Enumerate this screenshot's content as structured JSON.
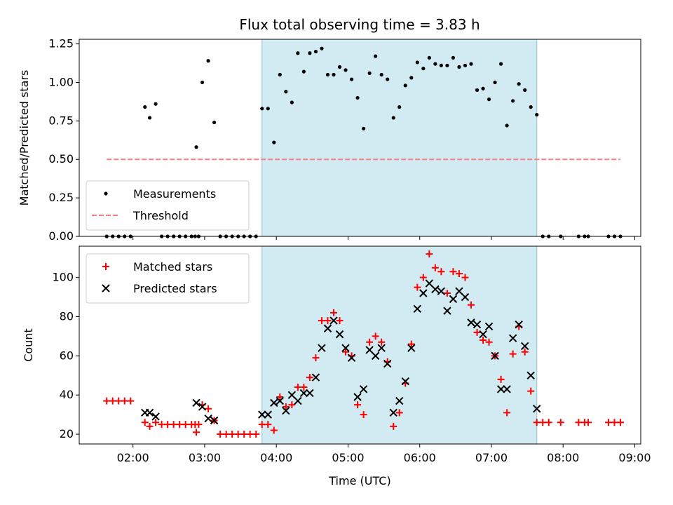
{
  "chart_data": [
    {
      "type": "scatter",
      "title": "Flux total observing time = 3.83 h",
      "xlabel": "",
      "ylabel": "Matched/Predicted stars",
      "ylim": [
        0,
        1.28
      ],
      "xlim": [
        "01:15",
        "09:05"
      ],
      "yticks": [
        0.0,
        0.25,
        0.5,
        0.75,
        1.0,
        1.25
      ],
      "ytick_labels": [
        "0.00",
        "0.25",
        "0.50",
        "0.75",
        "1.00",
        "1.25"
      ],
      "highlight_span": [
        "03:48",
        "07:38"
      ],
      "highlight_color": "#add8e6",
      "legend": {
        "location": "lower-left",
        "entries": [
          "Measurements",
          "Threshold"
        ]
      },
      "series": [
        {
          "name": "Measurements",
          "marker": "dot",
          "color": "#000000",
          "points": [
            [
              "01:38",
              0
            ],
            [
              "01:43",
              0
            ],
            [
              "01:48",
              0
            ],
            [
              "01:53",
              0
            ],
            [
              "01:58",
              0
            ],
            [
              "02:10",
              0.84
            ],
            [
              "02:14",
              0.77
            ],
            [
              "02:19",
              0.86
            ],
            [
              "02:24",
              0
            ],
            [
              "02:29",
              0
            ],
            [
              "02:34",
              0
            ],
            [
              "02:39",
              0
            ],
            [
              "02:44",
              0
            ],
            [
              "02:49",
              0
            ],
            [
              "02:52",
              0
            ],
            [
              "02:55",
              0
            ],
            [
              "02:53",
              0.58
            ],
            [
              "02:58",
              1.0
            ],
            [
              "03:03",
              1.14
            ],
            [
              "03:08",
              0.74
            ],
            [
              "03:13",
              0
            ],
            [
              "03:18",
              0
            ],
            [
              "03:23",
              0
            ],
            [
              "03:28",
              0
            ],
            [
              "03:33",
              0
            ],
            [
              "03:38",
              0
            ],
            [
              "03:43",
              0
            ],
            [
              "03:48",
              0.83
            ],
            [
              "03:53",
              0.83
            ],
            [
              "03:58",
              0.61
            ],
            [
              "04:03",
              1.05
            ],
            [
              "04:08",
              0.94
            ],
            [
              "04:13",
              0.87
            ],
            [
              "04:18",
              1.19
            ],
            [
              "04:23",
              1.07
            ],
            [
              "04:28",
              1.19
            ],
            [
              "04:33",
              1.2
            ],
            [
              "04:38",
              1.22
            ],
            [
              "04:43",
              1.05
            ],
            [
              "04:48",
              1.05
            ],
            [
              "04:53",
              1.1
            ],
            [
              "04:58",
              1.08
            ],
            [
              "05:03",
              1.02
            ],
            [
              "05:08",
              0.9
            ],
            [
              "05:13",
              0.7
            ],
            [
              "05:18",
              1.06
            ],
            [
              "05:23",
              1.17
            ],
            [
              "05:28",
              1.05
            ],
            [
              "05:33",
              1.02
            ],
            [
              "05:38",
              0.77
            ],
            [
              "05:43",
              0.84
            ],
            [
              "05:48",
              0.98
            ],
            [
              "05:53",
              1.03
            ],
            [
              "05:58",
              1.13
            ],
            [
              "06:03",
              1.09
            ],
            [
              "06:08",
              1.16
            ],
            [
              "06:13",
              1.12
            ],
            [
              "06:18",
              1.11
            ],
            [
              "06:23",
              1.11
            ],
            [
              "06:28",
              1.16
            ],
            [
              "06:33",
              1.1
            ],
            [
              "06:38",
              1.11
            ],
            [
              "06:43",
              1.12
            ],
            [
              "06:48",
              0.95
            ],
            [
              "06:53",
              0.96
            ],
            [
              "06:58",
              0.89
            ],
            [
              "07:03",
              1.0
            ],
            [
              "07:08",
              1.12
            ],
            [
              "07:13",
              0.72
            ],
            [
              "07:18",
              0.88
            ],
            [
              "07:23",
              0.99
            ],
            [
              "07:28",
              0.95
            ],
            [
              "07:33",
              0.84
            ],
            [
              "07:38",
              0.79
            ],
            [
              "07:43",
              0
            ],
            [
              "07:48",
              0
            ],
            [
              "07:58",
              0
            ],
            [
              "08:13",
              0
            ],
            [
              "08:18",
              0
            ],
            [
              "08:21",
              0
            ],
            [
              "08:38",
              0
            ],
            [
              "08:43",
              0
            ],
            [
              "08:48",
              0
            ]
          ]
        },
        {
          "name": "Threshold",
          "style": "dashed",
          "color": "#f08080",
          "points": [
            [
              "01:38",
              0.5
            ],
            [
              "08:48",
              0.5
            ]
          ]
        }
      ]
    },
    {
      "type": "scatter",
      "title": "",
      "xlabel": "Time (UTC)",
      "ylabel": "Count",
      "ylim": [
        15,
        116
      ],
      "xlim": [
        "01:15",
        "09:05"
      ],
      "yticks": [
        20,
        40,
        60,
        80,
        100
      ],
      "xticks": [
        "02:00",
        "03:00",
        "04:00",
        "05:00",
        "06:00",
        "07:00",
        "08:00",
        "09:00"
      ],
      "highlight_span": [
        "03:48",
        "07:38"
      ],
      "highlight_color": "#add8e6",
      "legend": {
        "location": "upper-left",
        "entries": [
          "Matched stars",
          "Predicted stars"
        ]
      },
      "series": [
        {
          "name": "Matched stars",
          "marker": "plus",
          "color": "#ff0000",
          "points": [
            [
              "01:38",
              37
            ],
            [
              "01:43",
              37
            ],
            [
              "01:48",
              37
            ],
            [
              "01:53",
              37
            ],
            [
              "01:58",
              37
            ],
            [
              "02:10",
              26
            ],
            [
              "02:14",
              24
            ],
            [
              "02:19",
              26
            ],
            [
              "02:24",
              25
            ],
            [
              "02:29",
              25
            ],
            [
              "02:34",
              25
            ],
            [
              "02:39",
              25
            ],
            [
              "02:44",
              25
            ],
            [
              "02:49",
              25
            ],
            [
              "02:52",
              25
            ],
            [
              "02:55",
              25
            ],
            [
              "02:53",
              21
            ],
            [
              "02:58",
              35
            ],
            [
              "03:03",
              33
            ],
            [
              "03:08",
              27
            ],
            [
              "03:13",
              20
            ],
            [
              "03:18",
              20
            ],
            [
              "03:23",
              20
            ],
            [
              "03:28",
              20
            ],
            [
              "03:33",
              20
            ],
            [
              "03:38",
              20
            ],
            [
              "03:43",
              20
            ],
            [
              "03:48",
              25
            ],
            [
              "03:53",
              25
            ],
            [
              "03:58",
              22
            ],
            [
              "04:03",
              39
            ],
            [
              "04:08",
              34
            ],
            [
              "04:13",
              35
            ],
            [
              "04:18",
              44
            ],
            [
              "04:23",
              44
            ],
            [
              "04:28",
              49
            ],
            [
              "04:33",
              59
            ],
            [
              "04:38",
              78
            ],
            [
              "04:43",
              78
            ],
            [
              "04:48",
              82
            ],
            [
              "04:53",
              78
            ],
            [
              "04:58",
              62
            ],
            [
              "05:03",
              60
            ],
            [
              "05:08",
              35
            ],
            [
              "05:13",
              30
            ],
            [
              "05:18",
              67
            ],
            [
              "05:23",
              70
            ],
            [
              "05:28",
              67
            ],
            [
              "05:33",
              57
            ],
            [
              "05:38",
              24
            ],
            [
              "05:43",
              31
            ],
            [
              "05:48",
              46
            ],
            [
              "05:53",
              66
            ],
            [
              "05:58",
              95
            ],
            [
              "06:03",
              100
            ],
            [
              "06:08",
              112
            ],
            [
              "06:13",
              105
            ],
            [
              "06:18",
              103
            ],
            [
              "06:23",
              92
            ],
            [
              "06:28",
              103
            ],
            [
              "06:33",
              102
            ],
            [
              "06:38",
              100
            ],
            [
              "06:43",
              86
            ],
            [
              "06:48",
              72
            ],
            [
              "06:53",
              68
            ],
            [
              "06:58",
              67
            ],
            [
              "07:03",
              60
            ],
            [
              "07:08",
              48
            ],
            [
              "07:13",
              31
            ],
            [
              "07:18",
              61
            ],
            [
              "07:23",
              75
            ],
            [
              "07:28",
              62
            ],
            [
              "07:33",
              42
            ],
            [
              "07:38",
              26
            ],
            [
              "07:43",
              26
            ],
            [
              "07:48",
              26
            ],
            [
              "07:58",
              26
            ],
            [
              "08:13",
              26
            ],
            [
              "08:18",
              26
            ],
            [
              "08:21",
              26
            ],
            [
              "08:38",
              26
            ],
            [
              "08:43",
              26
            ],
            [
              "08:48",
              26
            ]
          ]
        },
        {
          "name": "Predicted stars",
          "marker": "x",
          "color": "#000000",
          "points": [
            [
              "02:10",
              31
            ],
            [
              "02:14",
              31
            ],
            [
              "02:19",
              29
            ],
            [
              "02:53",
              36
            ],
            [
              "02:58",
              34
            ],
            [
              "03:03",
              28
            ],
            [
              "03:08",
              27
            ],
            [
              "03:48",
              30
            ],
            [
              "03:53",
              30
            ],
            [
              "03:58",
              36
            ],
            [
              "04:03",
              37
            ],
            [
              "04:08",
              32
            ],
            [
              "04:13",
              40
            ],
            [
              "04:18",
              37
            ],
            [
              "04:23",
              41
            ],
            [
              "04:28",
              41
            ],
            [
              "04:33",
              49
            ],
            [
              "04:38",
              64
            ],
            [
              "04:43",
              74
            ],
            [
              "04:48",
              78
            ],
            [
              "04:53",
              71
            ],
            [
              "04:58",
              64
            ],
            [
              "05:03",
              59
            ],
            [
              "05:08",
              39
            ],
            [
              "05:13",
              43
            ],
            [
              "05:18",
              63
            ],
            [
              "05:23",
              60
            ],
            [
              "05:28",
              64
            ],
            [
              "05:33",
              56
            ],
            [
              "05:38",
              31
            ],
            [
              "05:43",
              37
            ],
            [
              "05:48",
              47
            ],
            [
              "05:53",
              64
            ],
            [
              "05:58",
              84
            ],
            [
              "06:03",
              92
            ],
            [
              "06:08",
              97
            ],
            [
              "06:13",
              94
            ],
            [
              "06:18",
              93
            ],
            [
              "06:23",
              83
            ],
            [
              "06:28",
              89
            ],
            [
              "06:33",
              93
            ],
            [
              "06:38",
              90
            ],
            [
              "06:43",
              77
            ],
            [
              "06:48",
              76
            ],
            [
              "06:53",
              71
            ],
            [
              "06:58",
              75
            ],
            [
              "07:03",
              60
            ],
            [
              "07:08",
              43
            ],
            [
              "07:13",
              43
            ],
            [
              "07:18",
              69
            ],
            [
              "07:23",
              76
            ],
            [
              "07:28",
              65
            ],
            [
              "07:33",
              50
            ],
            [
              "07:38",
              33
            ]
          ]
        }
      ]
    }
  ]
}
